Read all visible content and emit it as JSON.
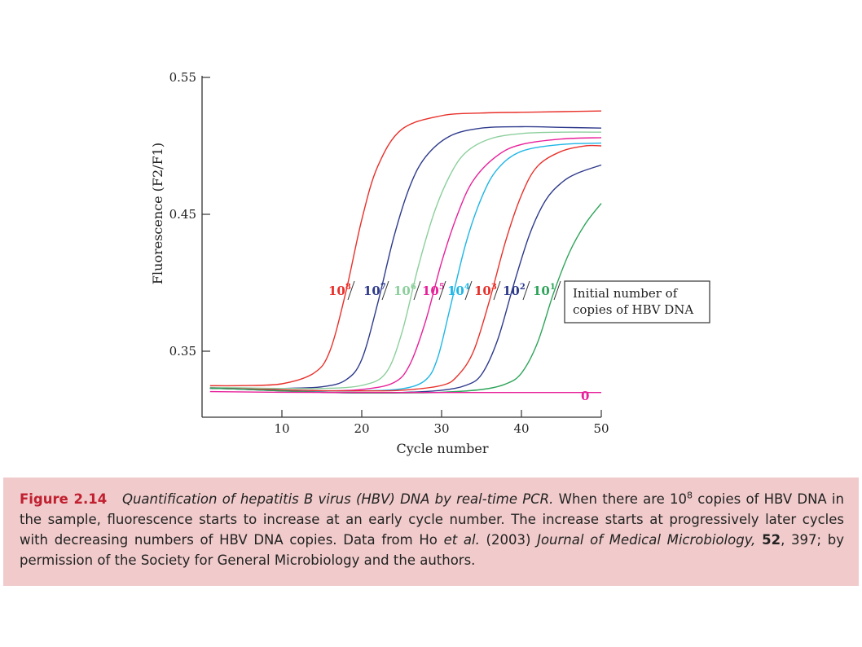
{
  "chart_data": {
    "type": "line",
    "title": "",
    "xlabel": "Cycle number",
    "ylabel": "Fluorescence (F2/F1)",
    "xlim": [
      0,
      50
    ],
    "ylim": [
      0.31,
      0.55
    ],
    "xticks": [
      10,
      20,
      30,
      40,
      50
    ],
    "xtick_labels": [
      "10",
      "20",
      "30",
      "40",
      "50"
    ],
    "yticks": [
      0.35,
      0.45,
      0.55
    ],
    "ytick_labels": [
      "0.35",
      "0.45",
      "0.55"
    ],
    "grid": false,
    "series": [
      {
        "name": "10",
        "exp": "8",
        "color": "#e8302a",
        "x": [
          1,
          5,
          10,
          14,
          16,
          18,
          20,
          22,
          25,
          30,
          35,
          40,
          45,
          50
        ],
        "y": [
          0.3248,
          0.3249,
          0.3262,
          0.334,
          0.35,
          0.393,
          0.446,
          0.485,
          0.512,
          0.522,
          0.524,
          0.5245,
          0.525,
          0.5255
        ]
      },
      {
        "name": "10",
        "exp": "7",
        "color": "#2e3a8c",
        "x": [
          1,
          5,
          10,
          15,
          18,
          20,
          22,
          24,
          26,
          28,
          31,
          35,
          40,
          45,
          50
        ],
        "y": [
          0.323,
          0.3228,
          0.3228,
          0.324,
          0.329,
          0.344,
          0.385,
          0.433,
          0.47,
          0.492,
          0.507,
          0.513,
          0.514,
          0.5135,
          0.513
        ]
      },
      {
        "name": "10",
        "exp": "6",
        "color": "#8ccf9c",
        "x": [
          1,
          5,
          10,
          15,
          20,
          23,
          25,
          27,
          29,
          31,
          33,
          36,
          40,
          45,
          50
        ],
        "y": [
          0.3235,
          0.3232,
          0.3228,
          0.3228,
          0.325,
          0.334,
          0.363,
          0.41,
          0.45,
          0.478,
          0.495,
          0.505,
          0.509,
          0.51,
          0.51
        ]
      },
      {
        "name": "10",
        "exp": "5",
        "color": "#e8209a",
        "x": [
          1,
          5,
          10,
          15,
          20,
          24,
          26,
          28,
          30,
          32,
          34,
          37,
          40,
          45,
          50
        ],
        "y": [
          0.323,
          0.3225,
          0.3215,
          0.321,
          0.322,
          0.327,
          0.34,
          0.372,
          0.415,
          0.45,
          0.475,
          0.493,
          0.501,
          0.505,
          0.506
        ]
      },
      {
        "name": "10",
        "exp": "4",
        "color": "#1fb6e6",
        "x": [
          1,
          5,
          10,
          15,
          20,
          25,
          28,
          29.5,
          31,
          33,
          35,
          37,
          40,
          45,
          50
        ],
        "y": [
          0.323,
          0.3225,
          0.3215,
          0.321,
          0.321,
          0.3225,
          0.329,
          0.345,
          0.38,
          0.428,
          0.462,
          0.483,
          0.496,
          0.501,
          0.502
        ]
      },
      {
        "name": "10",
        "exp": "3",
        "color": "#e8302a",
        "x": [
          1,
          5,
          10,
          15,
          20,
          25,
          30,
          32,
          34,
          36,
          38,
          40,
          42,
          45,
          48,
          50
        ],
        "y": [
          0.323,
          0.3225,
          0.3218,
          0.3212,
          0.321,
          0.3215,
          0.325,
          0.332,
          0.35,
          0.387,
          0.43,
          0.464,
          0.485,
          0.496,
          0.5,
          0.5
        ]
      },
      {
        "name": "10",
        "exp": "2",
        "color": "#2e3a8c",
        "x": [
          1,
          5,
          10,
          15,
          20,
          25,
          30,
          33,
          35,
          37,
          39,
          41,
          43,
          45,
          47,
          50
        ],
        "y": [
          0.323,
          0.3222,
          0.321,
          0.32,
          0.3195,
          0.3198,
          0.3215,
          0.325,
          0.333,
          0.358,
          0.398,
          0.435,
          0.46,
          0.473,
          0.48,
          0.486
        ]
      },
      {
        "name": "10",
        "exp": "1",
        "color": "#2ea45a",
        "x": [
          1,
          5,
          10,
          15,
          20,
          25,
          30,
          35,
          38,
          40,
          42,
          44,
          46,
          48,
          50
        ],
        "y": [
          0.323,
          0.3222,
          0.321,
          0.32,
          0.3195,
          0.3195,
          0.32,
          0.322,
          0.326,
          0.334,
          0.356,
          0.392,
          0.422,
          0.443,
          0.458
        ]
      },
      {
        "name": "0",
        "exp": "",
        "color": "#e8209a",
        "x": [
          1,
          10,
          20,
          30,
          40,
          50
        ],
        "y": [
          0.3205,
          0.32,
          0.3198,
          0.3198,
          0.3198,
          0.3198
        ]
      }
    ],
    "annotation": {
      "lines": [
        "Initial number of",
        "copies of HBV DNA"
      ]
    }
  },
  "caption": {
    "figure_label": "Figure 2.14",
    "figure_title": "Quantification of hepatitis B virus (HBV) DNA by real-time PCR.",
    "text_1": "When there are 10",
    "text_1_sup": "8",
    "text_2": "copies of HBV DNA in the sample, fluorescence starts to increase at an early cycle number. The increase starts at progressively later cycles with decreasing numbers of HBV DNA copies. Data from Ho",
    "etal": "et al.",
    "text_3": "(2003)",
    "journal": "Journal of Medical Microbiology,",
    "volume": "52",
    "text_4": ", 397; by permission of the Society for General Microbiology and the authors."
  }
}
